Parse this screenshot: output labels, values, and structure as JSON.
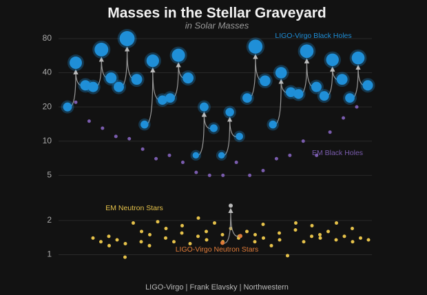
{
  "chart_data": {
    "type": "scatter",
    "title": "Masses in the Stellar Graveyard",
    "subtitle": "in Solar Masses",
    "credit": "LIGO-Virgo | Frank Elavsky | Northwestern",
    "log_y": true,
    "grid": true,
    "ylim": [
      0.7,
      100
    ],
    "yticks": [
      1,
      2,
      5,
      10,
      20,
      40,
      80
    ],
    "series": [
      {
        "name": "LIGO-Virgo Black Holes",
        "color": "#1f8fd8",
        "final_color": "#1f8fd8",
        "mergers": [
          {
            "m1": 31,
            "m2": 20,
            "final": 49
          },
          {
            "m1": 36,
            "m2": 30,
            "final": 64
          },
          {
            "m1": 35,
            "m2": 30,
            "final": 80
          },
          {
            "m1": 23,
            "m2": 14,
            "final": 51
          },
          {
            "m1": 36,
            "m2": 24,
            "final": 57
          },
          {
            "m1": 13,
            "m2": 7.5,
            "final": 20
          },
          {
            "m1": 11,
            "m2": 7.5,
            "final": 18
          },
          {
            "m1": 34,
            "m2": 24,
            "final": 68
          },
          {
            "m1": 27,
            "m2": 14,
            "final": 40
          },
          {
            "m1": 30,
            "m2": 26,
            "final": 62
          },
          {
            "m1": 35,
            "m2": 25,
            "final": 52
          },
          {
            "m1": 31,
            "m2": 24,
            "final": 54
          }
        ]
      },
      {
        "name": "EM Black Holes",
        "color": "#7a5cae",
        "values": [
          22,
          15,
          13,
          11,
          10.5,
          8.5,
          7,
          7.5,
          6.5,
          5.3,
          5,
          5,
          6.5,
          5,
          5.5,
          7,
          7.5,
          10,
          7.5,
          12,
          16,
          20
        ]
      },
      {
        "name": "EM Neutron Stars",
        "color": "#e6c24a",
        "values": [
          1.4,
          1.3,
          1.45,
          1.2,
          1.35,
          0.95,
          1.25,
          1.9,
          1.3,
          1.6,
          1.2,
          1.5,
          1.95,
          1.4,
          1.7,
          1.3,
          1.55,
          1.8,
          1.25,
          1.45,
          2.1,
          1.6,
          1.35,
          1.9,
          1.5,
          1.3,
          1.7,
          1.4,
          1.45,
          1.6,
          1.3,
          1.5,
          1.85,
          1.4,
          1.2,
          1.55,
          1.35,
          0.98,
          1.65,
          1.9,
          1.3,
          1.45,
          1.8,
          1.5,
          1.4,
          1.6,
          1.35,
          1.9,
          1.45,
          1.7,
          1.3,
          1.4,
          1.35
        ]
      },
      {
        "name": "LIGO-Virgo Neutron Stars",
        "color": "#e07b39",
        "final_color": "#bbbbbb",
        "mergers": [
          {
            "m1": 1.46,
            "m2": 1.27,
            "final": 2.7
          }
        ]
      }
    ]
  }
}
